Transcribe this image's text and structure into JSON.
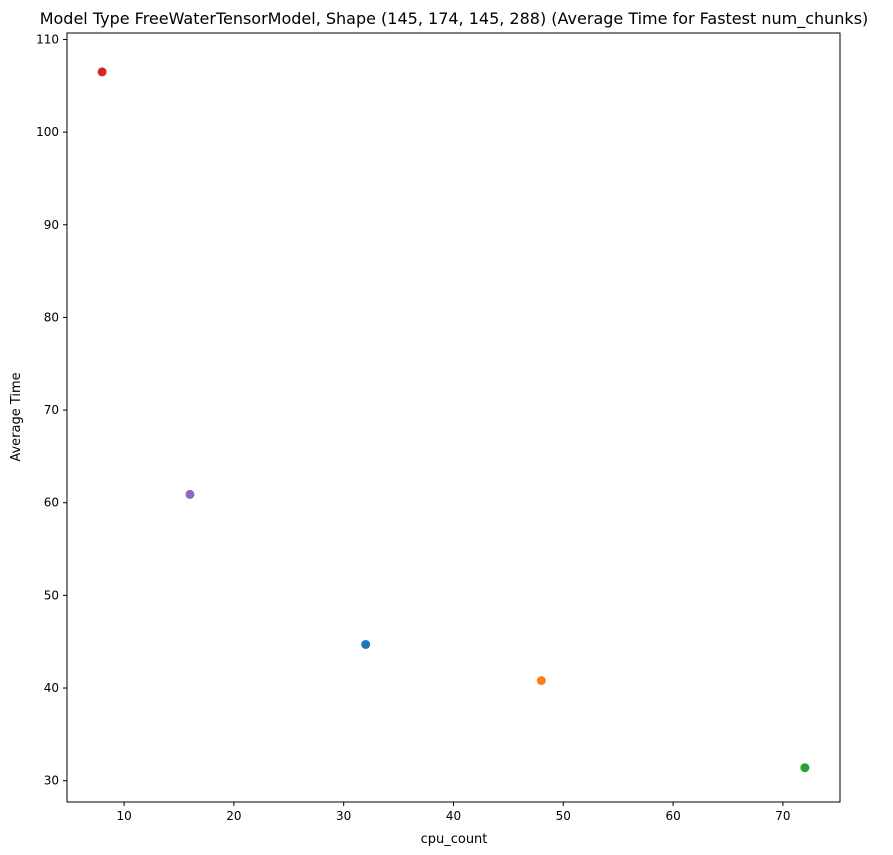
{
  "chart_data": {
    "type": "scatter",
    "title": "Model Type FreeWaterTensorModel, Shape (145, 174, 145, 288) (Average Time for Fastest num_chunks)",
    "xlabel": "cpu_count",
    "ylabel": "Average Time",
    "xlim": [
      4.8,
      75.2
    ],
    "ylim": [
      27.7,
      110.7
    ],
    "xticks": [
      10,
      20,
      30,
      40,
      50,
      60,
      70
    ],
    "yticks": [
      30,
      40,
      50,
      60,
      70,
      80,
      90,
      100,
      110
    ],
    "grid": false,
    "points": [
      {
        "x": 8,
        "y": 106.5,
        "color": "#d62728"
      },
      {
        "x": 16,
        "y": 60.9,
        "color": "#9467bd"
      },
      {
        "x": 32,
        "y": 44.7,
        "color": "#1f77b4"
      },
      {
        "x": 48,
        "y": 40.8,
        "color": "#ff7f0e"
      },
      {
        "x": 72,
        "y": 31.4,
        "color": "#2ca02c"
      }
    ]
  }
}
